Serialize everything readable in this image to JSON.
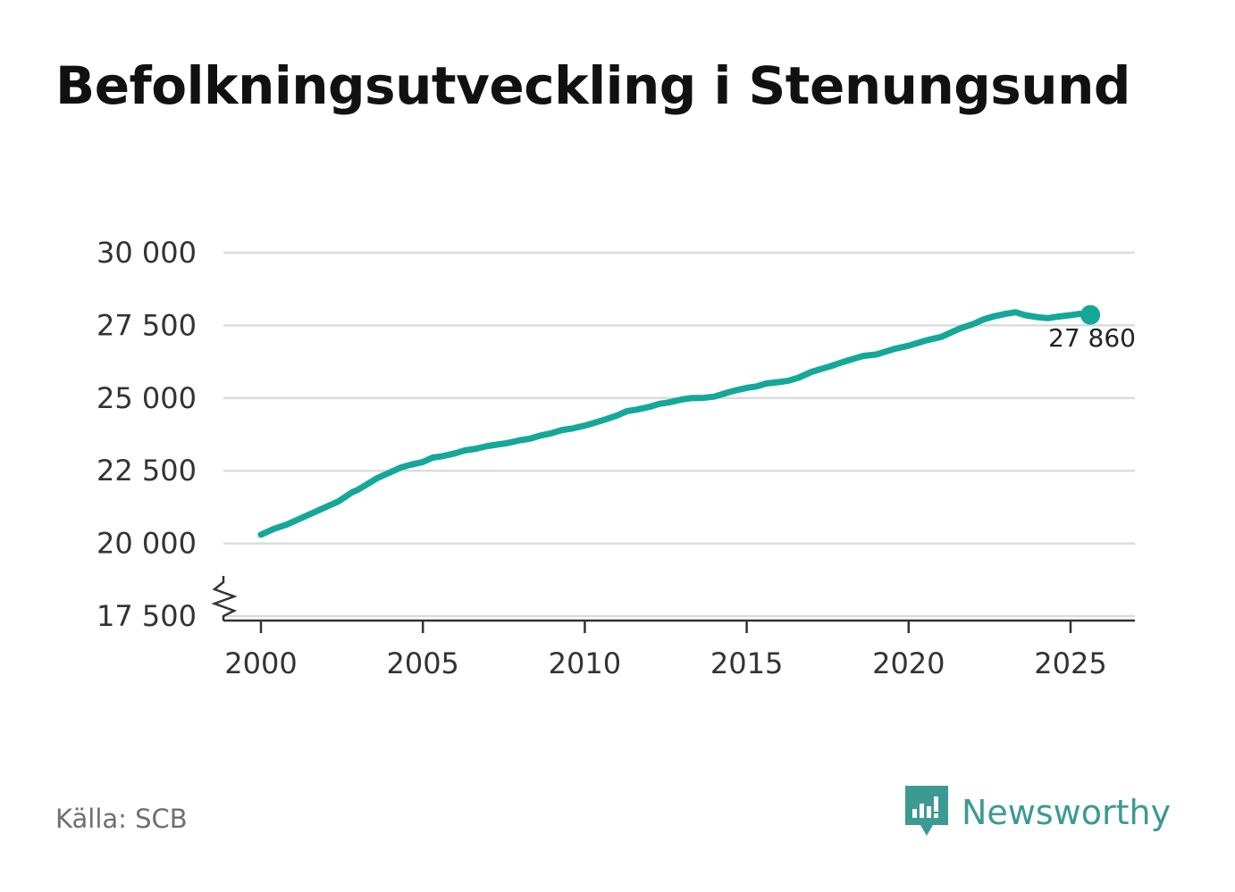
{
  "title": "Befolkningsutveckling i Stenungsund",
  "source": "Källa: SCB",
  "brand": {
    "name": "Newsworthy"
  },
  "colors": {
    "line": "#14a899",
    "grid": "#dcdcdc",
    "axis": "#333333",
    "brand": "#3d9a92"
  },
  "chart_data": {
    "type": "line",
    "title": "Befolkningsutveckling i Stenungsund",
    "xlabel": "",
    "ylabel": "",
    "xlim": [
      1999,
      2027
    ],
    "ylim": [
      17500,
      30000
    ],
    "y_axis_break": true,
    "grid": "horizontal",
    "x_ticks": [
      2000,
      2005,
      2010,
      2015,
      2020,
      2025
    ],
    "x_tick_labels": [
      "2000",
      "2005",
      "2010",
      "2015",
      "2020",
      "2025"
    ],
    "y_ticks": [
      17500,
      20000,
      22500,
      25000,
      27500,
      30000
    ],
    "y_tick_labels": [
      "17 500",
      "20 000",
      "22 500",
      "25 000",
      "27 500",
      "30 000"
    ],
    "end_label": "27 860",
    "series": [
      {
        "x": [
          2000.0,
          2000.4,
          2000.8,
          2001.2,
          2001.6,
          2002.0,
          2002.4,
          2002.8,
          2003.0,
          2003.3,
          2003.6,
          2004.0,
          2004.3,
          2004.6,
          2005.0,
          2005.3,
          2005.6,
          2006.0,
          2006.3,
          2006.6,
          2007.0,
          2007.3,
          2007.6,
          2008.0,
          2008.3,
          2008.6,
          2009.0,
          2009.3,
          2009.6,
          2010.0,
          2010.3,
          2010.6,
          2011.0,
          2011.3,
          2011.6,
          2012.0,
          2012.3,
          2012.6,
          2013.0,
          2013.3,
          2013.6,
          2014.0,
          2014.3,
          2014.6,
          2015.0,
          2015.3,
          2015.6,
          2016.0,
          2016.3,
          2016.6,
          2017.0,
          2017.3,
          2017.6,
          2018.0,
          2018.3,
          2018.6,
          2019.0,
          2019.3,
          2019.6,
          2020.0,
          2020.3,
          2020.6,
          2021.0,
          2021.3,
          2021.6,
          2022.0,
          2022.3,
          2022.6,
          2023.0,
          2023.3,
          2023.6,
          2024.0,
          2024.3,
          2024.6,
          2025.0,
          2025.3,
          2025.5
        ],
        "y": [
          20300,
          20500,
          20650,
          20850,
          21050,
          21250,
          21450,
          21750,
          21850,
          22050,
          22250,
          22450,
          22600,
          22700,
          22800,
          22950,
          23000,
          23100,
          23200,
          23250,
          23350,
          23400,
          23450,
          23550,
          23600,
          23700,
          23800,
          23900,
          23950,
          24050,
          24150,
          24250,
          24400,
          24550,
          24600,
          24700,
          24800,
          24850,
          24950,
          25000,
          25000,
          25050,
          25150,
          25250,
          25350,
          25400,
          25500,
          25550,
          25600,
          25700,
          25900,
          26000,
          26100,
          26250,
          26350,
          26450,
          26500,
          26600,
          26700,
          26800,
          26900,
          27000,
          27100,
          27250,
          27400,
          27550,
          27700,
          27800,
          27900,
          27950,
          27850,
          27780,
          27750,
          27800,
          27850,
          27900,
          27860
        ]
      }
    ]
  }
}
